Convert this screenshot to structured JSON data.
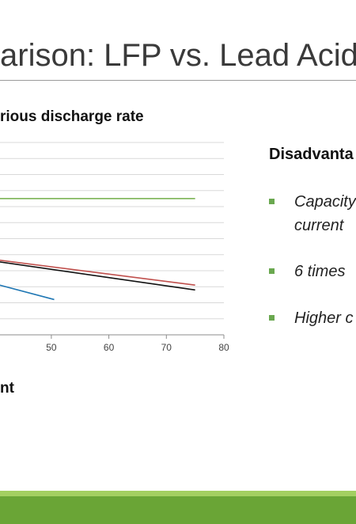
{
  "slide": {
    "title": "arison: LFP vs. Lead Acid"
  },
  "chart_data": {
    "type": "line",
    "title": "rious discharge rate",
    "xlabel": "nt",
    "ylabel": "",
    "xlim": [
      40,
      80
    ],
    "x_ticks": [
      50,
      60,
      70,
      80
    ],
    "ylim": [
      0,
      12
    ],
    "grid": true,
    "series": [
      {
        "color": "#70ad47",
        "x": [
          40,
          75
        ],
        "y": [
          8.5,
          8.5
        ]
      },
      {
        "color": "#c0504d",
        "x": [
          40,
          75
        ],
        "y": [
          4.7,
          3.1
        ]
      },
      {
        "color": "#111111",
        "x": [
          40,
          75
        ],
        "y": [
          4.6,
          2.8
        ]
      },
      {
        "color": "#1f77b4",
        "x": [
          40,
          50.5
        ],
        "y": [
          3.2,
          2.2
        ]
      }
    ]
  },
  "panel": {
    "heading": "Disadvanta",
    "bullets": [
      {
        "lines": [
          "Capacity",
          "current"
        ]
      },
      {
        "lines": [
          "6 times"
        ]
      },
      {
        "lines": [
          "Higher c"
        ]
      }
    ]
  },
  "colors": {
    "accent_green": "#6aa536",
    "accent_light_green": "#a3cf61",
    "bullet_green": "#6aa84f"
  }
}
